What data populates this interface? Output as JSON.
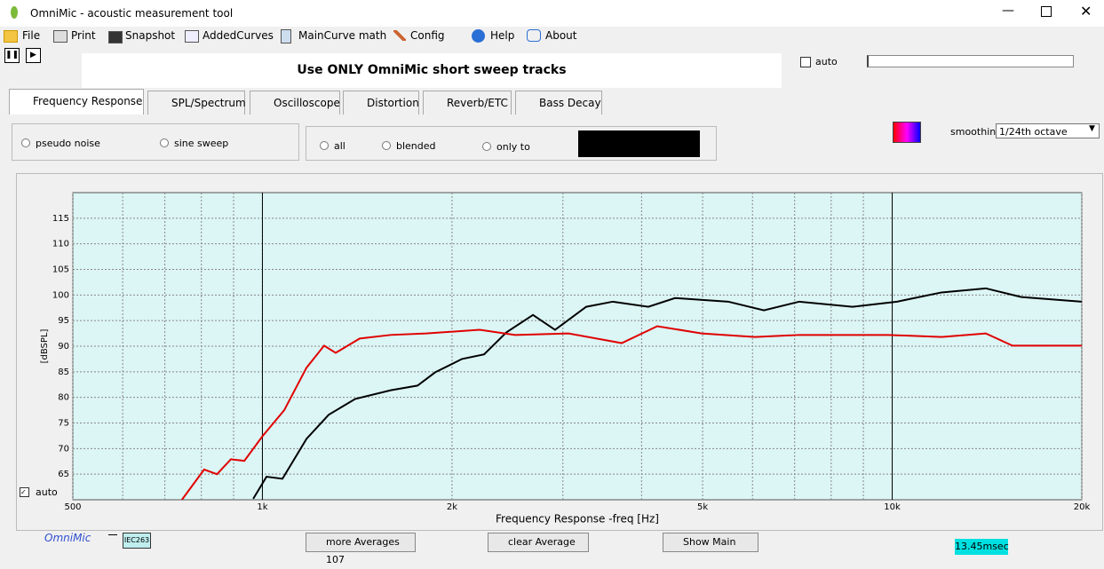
{
  "window": {
    "title": "OmniMic - acoustic measurement tool"
  },
  "menu": [
    "File",
    "Print",
    "Snapshot",
    "AddedCurves",
    "MainCurve math",
    "Config",
    "Help",
    "About"
  ],
  "banner": "Use ONLY OmniMic short sweep tracks",
  "auto_top": "auto",
  "tabs": [
    "Frequency Response",
    "SPL/Spectrum",
    "Oscilloscope",
    "Distortion",
    "Reverb/ETC",
    "Bass Decay"
  ],
  "signal_options": [
    "pseudo noise",
    "sine sweep"
  ],
  "display_options": [
    "all",
    "blended",
    "only to"
  ],
  "smoothing": {
    "label": "smoothing",
    "value": "1/24th octave"
  },
  "chart_data": {
    "type": "line",
    "log_x": true,
    "grid": true,
    "xlabel": "Frequency Response -freq [Hz]",
    "ylabel": "[dBSPL]",
    "xlim": [
      500,
      20000
    ],
    "ylim": [
      60,
      120
    ],
    "xticks": [
      500,
      {
        "value": 1000,
        "label": "1k"
      },
      {
        "value": 2000,
        "label": "2k"
      },
      {
        "value": 5000,
        "label": "5k"
      },
      {
        "value": 10000,
        "label": "10k"
      },
      {
        "value": 20000,
        "label": "20k"
      }
    ],
    "xgrid": [
      600,
      700,
      800,
      900,
      3000,
      4000,
      6000,
      7000,
      8000,
      9000
    ],
    "yticks": [
      65,
      70,
      75,
      80,
      85,
      90,
      95,
      100,
      105,
      110,
      115
    ],
    "cursor_lines": [
      1000,
      10000
    ],
    "series": [
      {
        "color": "#000000",
        "x": [
          967,
          1015,
          1076,
          1175,
          1274,
          1404,
          1599,
          1763,
          1881,
          2074,
          2249,
          2440,
          2689,
          2915,
          3267,
          3601,
          4100,
          4520,
          5490,
          6256,
          7120,
          8650,
          10175,
          11975,
          14080,
          16040,
          20000
        ],
        "values": [
          60.2,
          64.5,
          64.1,
          71.9,
          76.6,
          79.7,
          81.4,
          82.3,
          84.9,
          87.5,
          88.4,
          92.7,
          96.1,
          93.2,
          97.7,
          98.7,
          97.7,
          99.4,
          98.7,
          97,
          98.7,
          97.7,
          98.7,
          100.5,
          101.3,
          99.6,
          98.7
        ]
      },
      {
        "color": "#e00000",
        "x": [
          745,
          808,
          847,
          891,
          936,
          1000,
          1083,
          1175,
          1253,
          1307,
          1427,
          1599,
          1821,
          2213,
          2520,
          3062,
          3720,
          4235,
          4982,
          6052,
          7120,
          9855,
          11975,
          14080,
          15520,
          20000
        ],
        "values": [
          60,
          65.9,
          65,
          67.9,
          67.6,
          72.4,
          77.5,
          85.8,
          90.1,
          88.7,
          91.5,
          92.2,
          92.5,
          93.2,
          92.2,
          92.5,
          90.6,
          93.9,
          92.5,
          91.8,
          92.2,
          92.2,
          91.8,
          92.5,
          90.1,
          90.1
        ]
      }
    ]
  },
  "plot_auto": "auto",
  "footer": {
    "brand": "OmniMic",
    "mic": "IEC263",
    "buttons": [
      "more Averages 107",
      "clear Average",
      "Show Main"
    ],
    "time": "13.45msec"
  }
}
